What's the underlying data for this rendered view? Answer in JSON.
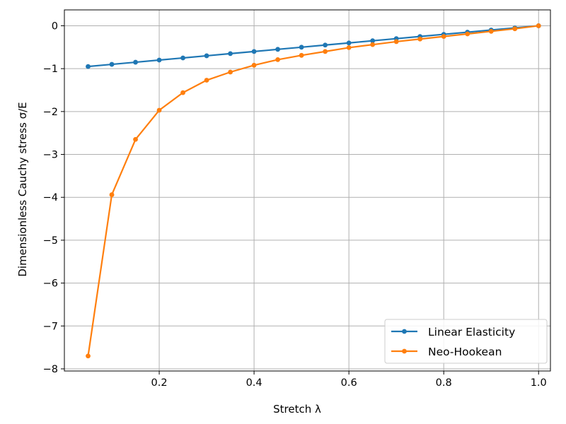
{
  "chart_data": {
    "type": "line",
    "title": "",
    "xlabel": "Stretch λ",
    "ylabel": "Dimensionless Cauchy stress σ/E",
    "xlim": [
      0.0,
      1.025
    ],
    "ylim": [
      -8.05,
      0.37
    ],
    "xticks": [
      0.2,
      0.4,
      0.6,
      0.8,
      1.0
    ],
    "xtick_labels": [
      "0.2",
      "0.4",
      "0.6",
      "0.8",
      "1.0"
    ],
    "yticks": [
      0,
      -1,
      -2,
      -3,
      -4,
      -5,
      -6,
      -7,
      -8
    ],
    "ytick_labels": [
      "0",
      "−1",
      "−2",
      "−3",
      "−4",
      "−5",
      "−6",
      "−7",
      "−8"
    ],
    "grid": true,
    "legend_position": "lower-right",
    "x": [
      0.05,
      0.1,
      0.15,
      0.2,
      0.25,
      0.3,
      0.35,
      0.4,
      0.45,
      0.5,
      0.55,
      0.6,
      0.65,
      0.7,
      0.75,
      0.8,
      0.85,
      0.9,
      0.95,
      1.0
    ],
    "series": [
      {
        "name": "Linear Elasticity",
        "color": "#1f77b4",
        "values": [
          -0.95,
          -0.9,
          -0.85,
          -0.8,
          -0.75,
          -0.7,
          -0.65,
          -0.6,
          -0.55,
          -0.5,
          -0.45,
          -0.4,
          -0.35,
          -0.3,
          -0.25,
          -0.2,
          -0.15,
          -0.1,
          -0.05,
          0.0
        ]
      },
      {
        "name": "Neo-Hookean",
        "color": "#ff7f0e",
        "values": [
          -7.7,
          -3.94,
          -2.65,
          -1.97,
          -1.56,
          -1.27,
          -1.08,
          -0.92,
          -0.79,
          -0.69,
          -0.6,
          -0.51,
          -0.44,
          -0.37,
          -0.31,
          -0.25,
          -0.19,
          -0.13,
          -0.07,
          0.0
        ]
      }
    ]
  }
}
